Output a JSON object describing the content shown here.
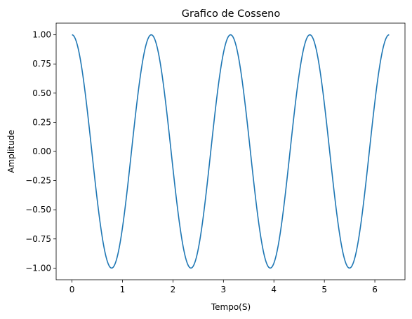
{
  "chart_data": {
    "type": "line",
    "title": "Grafico de Cosseno",
    "xlabel": "Tempo(S)",
    "ylabel": "Amplitude",
    "xlim": [
      -0.314,
      6.597
    ],
    "ylim": [
      -1.1,
      1.1
    ],
    "xticks": [
      0,
      1,
      2,
      3,
      4,
      5,
      6
    ],
    "xtick_labels": [
      "0",
      "1",
      "2",
      "3",
      "4",
      "5",
      "6"
    ],
    "yticks": [
      -1.0,
      -0.75,
      -0.5,
      -0.25,
      0.0,
      0.25,
      0.5,
      0.75,
      1.0
    ],
    "ytick_labels": [
      "−1.00",
      "−0.75",
      "−0.50",
      "−0.25",
      "0.00",
      "0.25",
      "0.50",
      "0.75",
      "1.00"
    ],
    "grid": false,
    "series": [
      {
        "function": "cos(4x)",
        "x_range": [
          0,
          6.2832
        ],
        "color": "#1f77b4",
        "x": [
          0,
          0.3927,
          0.7854,
          1.1781,
          1.5708,
          1.9635,
          2.3562,
          2.7489,
          3.1416,
          3.5343,
          3.927,
          4.3197,
          4.7124,
          5.1051,
          5.4978,
          5.8905,
          6.2832
        ],
        "y": [
          1,
          0,
          -1,
          0,
          1,
          0,
          -1,
          0,
          1,
          0,
          -1,
          0,
          1,
          0,
          -1,
          0,
          1
        ]
      }
    ]
  }
}
